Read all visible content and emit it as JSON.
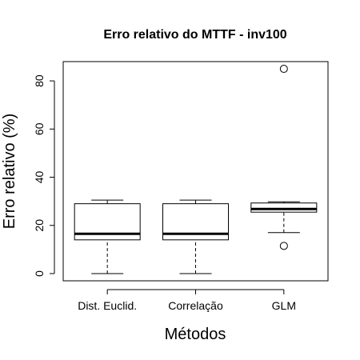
{
  "chart_data": {
    "type": "boxplot",
    "title": "Erro relativo do MTTF - inv100",
    "xlabel": "Métodos",
    "ylabel": "Erro relativo (%)",
    "categories": [
      "Dist. Euclid.",
      "Correlação",
      "GLM"
    ],
    "ylim": [
      -3,
      88
    ],
    "yticks": [
      0,
      20,
      40,
      60,
      80
    ],
    "grid": false,
    "boxes": [
      {
        "label": "Dist. Euclid.",
        "whisker_low": 0,
        "q1": 14,
        "median": 16.5,
        "q3": 29,
        "whisker_high": 30.5,
        "outliers": []
      },
      {
        "label": "Correlação",
        "whisker_low": 0,
        "q1": 14,
        "median": 16.5,
        "q3": 29,
        "whisker_high": 30.5,
        "outliers": []
      },
      {
        "label": "GLM",
        "whisker_low": 17,
        "q1": 25.5,
        "median": 26.8,
        "q3": 29.3,
        "whisker_high": 29.8,
        "outliers": [
          11.5,
          85
        ]
      }
    ]
  }
}
